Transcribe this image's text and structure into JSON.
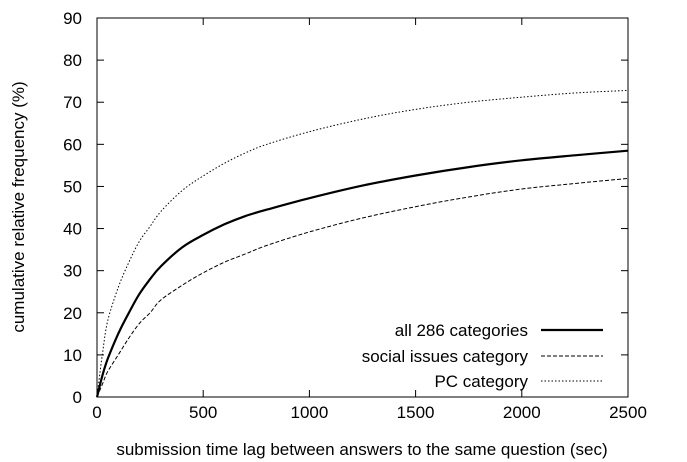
{
  "chart_data": {
    "type": "line",
    "title": "",
    "xlabel": "submission time lag between answers to the same question (sec)",
    "ylabel": "cumulative relative frequency (%)",
    "xlim": [
      0,
      2500
    ],
    "ylim": [
      0,
      90
    ],
    "xticks": [
      0,
      500,
      1000,
      1500,
      2000,
      2500
    ],
    "yticks": [
      0,
      10,
      20,
      30,
      40,
      50,
      60,
      70,
      80,
      90
    ],
    "grid": false,
    "legend_position": "bottom-right",
    "x": [
      0,
      25,
      50,
      100,
      150,
      200,
      250,
      300,
      400,
      500,
      600,
      700,
      800,
      1000,
      1250,
      1500,
      1750,
      2000,
      2250,
      2500
    ],
    "series": [
      {
        "name": "all 286 categories",
        "style": "solid-thick",
        "values": [
          0,
          5,
          9,
          15,
          20,
          24.5,
          28,
          31,
          35.5,
          38.5,
          41,
          43,
          44.5,
          47.2,
          50.2,
          52.6,
          54.6,
          56.2,
          57.4,
          58.5
        ]
      },
      {
        "name": "social issues category",
        "style": "dashed",
        "values": [
          0,
          3,
          6,
          10,
          14,
          17.5,
          20,
          23,
          26.5,
          29.5,
          32,
          34,
          36,
          39.2,
          42.5,
          45.2,
          47.5,
          49.4,
          50.7,
          51.9
        ]
      },
      {
        "name": "PC category",
        "style": "dotted",
        "values": [
          0,
          10,
          18,
          26,
          32,
          37,
          40.5,
          44,
          49,
          52.5,
          55.5,
          58,
          60,
          63,
          66,
          68.3,
          70,
          71.2,
          72.2,
          72.8
        ]
      }
    ]
  }
}
